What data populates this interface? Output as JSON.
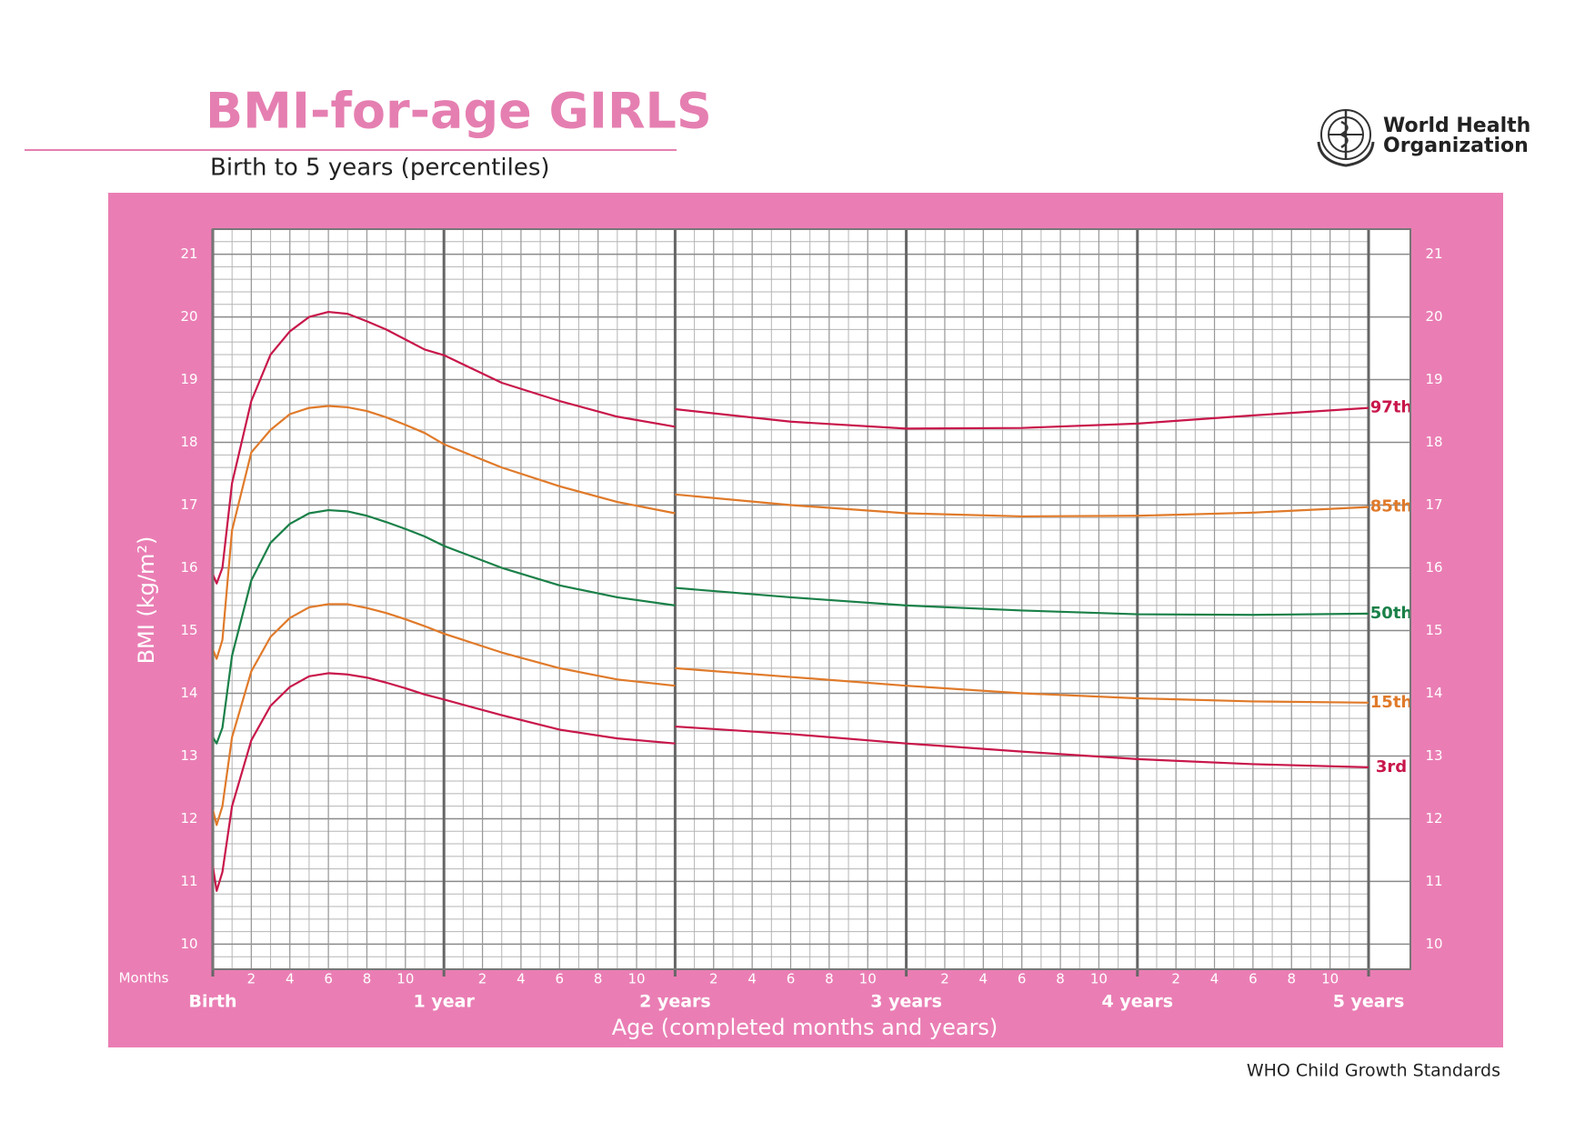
{
  "chart_data": {
    "type": "line",
    "title": "BMI-for-age GIRLS",
    "subtitle": "Birth to 5 years (percentiles)",
    "organization": [
      "World Health",
      "Organization"
    ],
    "footer": "WHO Child Growth Standards",
    "xlabel": "Age (completed months and years)",
    "ylabel": "BMI (kg/m²)",
    "x_minor_label": "Months",
    "xlim": [
      0,
      60
    ],
    "ylim": [
      9.6,
      21.4
    ],
    "yticks": [
      10,
      11,
      12,
      13,
      14,
      15,
      16,
      17,
      18,
      19,
      20,
      21
    ],
    "xticks": [
      2,
      4,
      6,
      8,
      10,
      {
        "value": 14,
        "label": "2"
      },
      {
        "value": 16,
        "label": "4"
      },
      {
        "value": 18,
        "label": "6"
      },
      {
        "value": 20,
        "label": "8"
      },
      {
        "value": 22,
        "label": "10"
      },
      {
        "value": 26,
        "label": "2"
      },
      {
        "value": 28,
        "label": "4"
      },
      {
        "value": 30,
        "label": "6"
      },
      {
        "value": 32,
        "label": "8"
      },
      {
        "value": 34,
        "label": "10"
      },
      {
        "value": 38,
        "label": "2"
      },
      {
        "value": 40,
        "label": "4"
      },
      {
        "value": 42,
        "label": "6"
      },
      {
        "value": 44,
        "label": "8"
      },
      {
        "value": 46,
        "label": "10"
      },
      {
        "value": 50,
        "label": "2"
      },
      {
        "value": 52,
        "label": "4"
      },
      {
        "value": 54,
        "label": "6"
      },
      {
        "value": 56,
        "label": "8"
      },
      {
        "value": 58,
        "label": "10"
      }
    ],
    "year_ticks": [
      {
        "value": 0,
        "label": "Birth"
      },
      {
        "value": 12,
        "label": "1 year"
      },
      {
        "value": 24,
        "label": "2 years"
      },
      {
        "value": 36,
        "label": "3 years"
      },
      {
        "value": 48,
        "label": "4 years"
      },
      {
        "value": 60,
        "label": "5 years"
      }
    ],
    "grid": true,
    "x": [
      0,
      0.2,
      0.5,
      1,
      2,
      3,
      4,
      5,
      6,
      7,
      8,
      9,
      10,
      11,
      12,
      15,
      18,
      21,
      24,
      24,
      24,
      30,
      36,
      42,
      48,
      54,
      60
    ],
    "series": [
      {
        "name": "97th",
        "color": "#c8174a",
        "values": [
          15.9,
          15.75,
          16.0,
          17.35,
          18.66,
          19.4,
          19.77,
          20.0,
          20.08,
          20.05,
          19.93,
          19.8,
          19.64,
          19.48,
          19.39,
          18.95,
          18.66,
          18.41,
          18.25,
          null,
          18.53,
          18.33,
          18.22,
          18.23,
          18.3,
          18.43,
          18.55
        ]
      },
      {
        "name": "85th",
        "color": "#e07a2a",
        "values": [
          14.7,
          14.55,
          14.85,
          16.6,
          17.84,
          18.2,
          18.45,
          18.55,
          18.58,
          18.56,
          18.5,
          18.4,
          18.28,
          18.15,
          17.97,
          17.6,
          17.3,
          17.05,
          16.87,
          null,
          17.17,
          17.0,
          16.87,
          16.82,
          16.83,
          16.88,
          16.97
        ]
      },
      {
        "name": "50th",
        "color": "#1a8048",
        "values": [
          13.3,
          13.2,
          13.45,
          14.6,
          15.8,
          16.4,
          16.7,
          16.87,
          16.92,
          16.9,
          16.83,
          16.73,
          16.62,
          16.5,
          16.35,
          16.0,
          15.72,
          15.53,
          15.4,
          null,
          15.68,
          15.53,
          15.4,
          15.32,
          15.26,
          15.25,
          15.27
        ]
      },
      {
        "name": "15th",
        "color": "#e07a2a",
        "values": [
          12.15,
          11.9,
          12.2,
          13.3,
          14.35,
          14.9,
          15.2,
          15.37,
          15.42,
          15.42,
          15.36,
          15.28,
          15.18,
          15.07,
          14.95,
          14.65,
          14.4,
          14.22,
          14.12,
          null,
          14.4,
          14.26,
          14.12,
          14.0,
          13.92,
          13.87,
          13.85
        ]
      },
      {
        "name": "3rd",
        "color": "#c8174a",
        "values": [
          11.25,
          10.85,
          11.15,
          12.2,
          13.25,
          13.8,
          14.1,
          14.27,
          14.32,
          14.3,
          14.25,
          14.17,
          14.08,
          13.98,
          13.9,
          13.65,
          13.42,
          13.28,
          13.2,
          null,
          13.47,
          13.35,
          13.2,
          13.07,
          12.95,
          12.87,
          12.82
        ]
      }
    ]
  }
}
